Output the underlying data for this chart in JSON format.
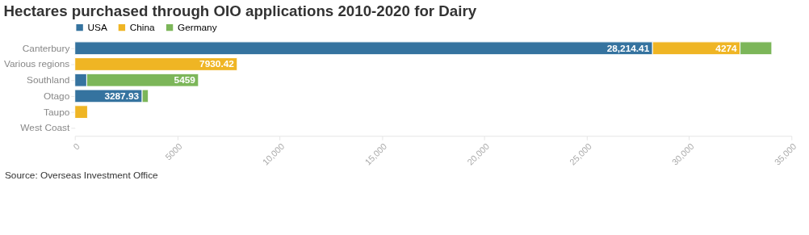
{
  "chart_data": {
    "type": "bar",
    "orientation": "horizontal",
    "stacked": true,
    "title": "Hectares purchased through OIO applications 2010-2020 for Dairy",
    "categories": [
      "Canterbury",
      "Various regions",
      "Southland",
      "Otago",
      "Taupo",
      "West Coast"
    ],
    "series": [
      {
        "name": "USA",
        "color": "#35739f",
        "values": [
          28214.41,
          null,
          580,
          3287.93,
          null,
          null
        ],
        "value_labels": [
          "28,214.41",
          null,
          null,
          "3287.93",
          null,
          null
        ]
      },
      {
        "name": "China",
        "color": "#efb524",
        "values": [
          4274,
          7930.42,
          null,
          null,
          620,
          null
        ],
        "value_labels": [
          "4274",
          "7930.42",
          null,
          null,
          null,
          null
        ]
      },
      {
        "name": "Germany",
        "color": "#7cb659",
        "values": [
          1550,
          null,
          5459,
          300,
          null,
          null
        ],
        "value_labels": [
          null,
          null,
          "5459",
          null,
          null,
          null
        ]
      }
    ],
    "xlim": [
      0,
      35000
    ],
    "xticks": [
      0,
      5000,
      {
        "value": 10000,
        "label": "10,000"
      },
      {
        "value": 15000,
        "label": "15,000"
      },
      {
        "value": 20000,
        "label": "20,000"
      },
      {
        "value": 25000,
        "label": "25,000"
      },
      {
        "value": 30000,
        "label": "30,000"
      },
      {
        "value": 35000,
        "label": "35,000"
      }
    ],
    "legend": "top left",
    "grid": false,
    "annotations": [
      "Source: Overseas Investment Office"
    ]
  }
}
